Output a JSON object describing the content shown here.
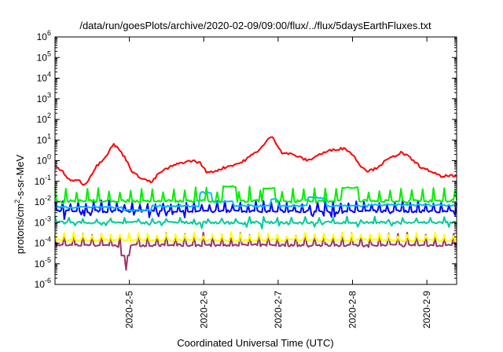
{
  "chart_data": {
    "type": "line",
    "title": "/data/run/goesPlots/archive/2020-02-09/09:00/flux/../flux/5daysEarthFluxes.txt",
    "xlabel": "Coordinated Universal Time (UTC)",
    "ylabel_parts": [
      "protons/cm",
      "2",
      "-s-sr-MeV"
    ],
    "yscale": "log",
    "ylim_exp": [
      -6,
      6
    ],
    "y_ticks": [
      {
        "base": "10",
        "exp": "-6"
      },
      {
        "base": "10",
        "exp": "-5"
      },
      {
        "base": "10",
        "exp": "-4"
      },
      {
        "base": "10",
        "exp": "-3"
      },
      {
        "base": "10",
        "exp": "-2"
      },
      {
        "base": "10",
        "exp": "-1"
      },
      {
        "base": "10",
        "exp": "0"
      },
      {
        "base": "10",
        "exp": "1"
      },
      {
        "base": "10",
        "exp": "2"
      },
      {
        "base": "10",
        "exp": "3"
      },
      {
        "base": "10",
        "exp": "4"
      },
      {
        "base": "10",
        "exp": "5"
      },
      {
        "base": "10",
        "exp": "6"
      }
    ],
    "xlim": [
      4.0,
      9.4
    ],
    "x_ticks": [
      {
        "value": 5,
        "label": "2020-2-5"
      },
      {
        "value": 6,
        "label": "2020-2-6"
      },
      {
        "value": 7,
        "label": "2020-2-7"
      },
      {
        "value": 8,
        "label": "2020-2-8"
      },
      {
        "value": 9,
        "label": "2020-2-9"
      }
    ],
    "grid": false,
    "series": [
      {
        "color": "#ff0000",
        "kind": "smooth",
        "knots": [
          [
            4.0,
            -0.3
          ],
          [
            4.1,
            -0.5
          ],
          [
            4.2,
            -1.0
          ],
          [
            4.3,
            -0.9
          ],
          [
            4.4,
            -1.2
          ],
          [
            4.55,
            -0.3
          ],
          [
            4.7,
            0.3
          ],
          [
            4.78,
            0.8
          ],
          [
            4.85,
            0.6
          ],
          [
            4.95,
            0.1
          ],
          [
            5.05,
            -0.6
          ],
          [
            5.2,
            -0.9
          ],
          [
            5.3,
            -1.05
          ],
          [
            5.4,
            -0.6
          ],
          [
            5.55,
            -0.3
          ],
          [
            5.7,
            -0.1
          ],
          [
            5.85,
            0.0
          ],
          [
            5.95,
            -0.1
          ],
          [
            6.05,
            -0.6
          ],
          [
            6.15,
            -0.5
          ],
          [
            6.3,
            -0.3
          ],
          [
            6.5,
            -0.1
          ],
          [
            6.7,
            0.4
          ],
          [
            6.82,
            0.8
          ],
          [
            6.9,
            1.2
          ],
          [
            6.95,
            1.0
          ],
          [
            7.05,
            0.4
          ],
          [
            7.2,
            0.3
          ],
          [
            7.4,
            0.0
          ],
          [
            7.55,
            0.3
          ],
          [
            7.75,
            0.55
          ],
          [
            7.9,
            0.6
          ],
          [
            8.0,
            0.3
          ],
          [
            8.1,
            -0.2
          ],
          [
            8.2,
            -0.5
          ],
          [
            8.3,
            -0.4
          ],
          [
            8.45,
            0.0
          ],
          [
            8.55,
            0.2
          ],
          [
            8.65,
            0.4
          ],
          [
            8.75,
            0.2
          ],
          [
            8.85,
            -0.1
          ],
          [
            8.95,
            -0.4
          ],
          [
            9.05,
            -0.5
          ],
          [
            9.2,
            -0.8
          ],
          [
            9.3,
            -0.7
          ],
          [
            9.4,
            -0.8
          ]
        ]
      },
      {
        "color": "#00ee00",
        "kind": "spiky",
        "base": -1.95,
        "spike": 0.7,
        "dip": 0.1,
        "spike_every": 7,
        "plateaus": [
          [
            6.25,
            6.45,
            -1.25
          ],
          [
            6.8,
            6.95,
            -1.35
          ],
          [
            7.85,
            8.05,
            -1.3
          ]
        ]
      },
      {
        "color": "#00bbff",
        "kind": "steps",
        "levels": [
          [
            4.0,
            -2.25
          ],
          [
            4.5,
            -2.25
          ],
          [
            4.9,
            -2.4
          ],
          [
            5.3,
            -2.2
          ],
          [
            5.95,
            -1.55
          ],
          [
            6.1,
            -2.0
          ],
          [
            6.4,
            -2.2
          ],
          [
            6.9,
            -1.9
          ],
          [
            7.0,
            -2.2
          ],
          [
            7.4,
            -1.8
          ],
          [
            7.65,
            -2.2
          ],
          [
            8.2,
            -2.15
          ],
          [
            9.4,
            -2.15
          ]
        ],
        "noise": 0.05
      },
      {
        "color": "#0000ff",
        "kind": "spiky",
        "base": -2.45,
        "spike": 0.5,
        "dip": 0.35,
        "spike_every": 5,
        "plateaus": []
      },
      {
        "color": "#00cc99",
        "kind": "spiky",
        "base": -3.0,
        "spike": 0.25,
        "dip": 0.25,
        "spike_every": 9,
        "plateaus": []
      },
      {
        "color": "#ffff00",
        "kind": "spiky",
        "base": -3.85,
        "spike": 0.35,
        "dip": 0.05,
        "spike_every": 6,
        "plateaus": []
      },
      {
        "color": "#993366",
        "kind": "spiky",
        "base": -4.1,
        "spike": 0.6,
        "dip": 0.05,
        "spike_every": 6,
        "plateaus": [],
        "special_dip": [
          4.95,
          -5.3
        ]
      }
    ]
  }
}
